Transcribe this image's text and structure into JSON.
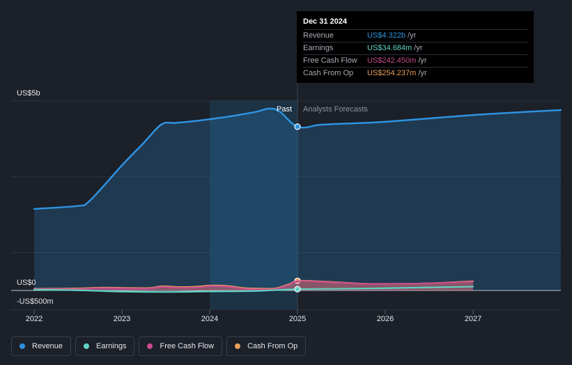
{
  "chart_data": {
    "type": "area",
    "x_ticks": [
      "2022",
      "2023",
      "2024",
      "2025",
      "2026",
      "2027"
    ],
    "y_axis_labels": [
      "US$5b",
      "US$0",
      "-US$500m"
    ],
    "ylim_millions": [
      -500,
      5000
    ],
    "divider_labels": {
      "past": "Past",
      "forecast": "Analysts Forecasts"
    },
    "divider_date": 2025.0,
    "highlight_range": [
      2024.0,
      2025.0
    ],
    "series": [
      {
        "name": "Revenue",
        "color": "#2e93e0",
        "filled": true,
        "x": [
          2022.0,
          2022.5,
          2022.6,
          2022.75,
          2023.0,
          2023.25,
          2023.45,
          2023.6,
          2023.75,
          2024.0,
          2024.25,
          2024.5,
          2024.75,
          2025.0,
          2025.25,
          2025.5,
          2025.75,
          2026.0,
          2026.5,
          2027.0,
          2027.5,
          2028.0
        ],
        "y": [
          2150,
          2230,
          2300,
          2650,
          3300,
          3900,
          4380,
          4420,
          4450,
          4520,
          4600,
          4700,
          4780,
          4322,
          4370,
          4400,
          4420,
          4450,
          4540,
          4630,
          4700,
          4760
        ]
      },
      {
        "name": "Earnings",
        "color": "#5ed4c4",
        "filled": false,
        "x": [
          2022.0,
          2022.5,
          2023.0,
          2023.5,
          2024.0,
          2024.5,
          2025.0,
          2025.5,
          2026.0,
          2026.5,
          2027.0
        ],
        "y": [
          20,
          5,
          -30,
          -40,
          -25,
          -15,
          34.684,
          45,
          60,
          80,
          100
        ]
      },
      {
        "name": "Free Cash Flow",
        "color": "#c84b8d",
        "filled": true,
        "x": [
          2022.0,
          2022.5,
          2022.75,
          2023.0,
          2023.3,
          2023.45,
          2023.6,
          2023.75,
          2023.9,
          2024.0,
          2024.2,
          2024.4,
          2024.6,
          2024.75,
          2024.9,
          2025.0,
          2025.25,
          2025.5,
          2025.75,
          2026.0,
          2026.5,
          2027.0
        ],
        "y": [
          35,
          40,
          60,
          55,
          50,
          90,
          75,
          70,
          85,
          110,
          100,
          40,
          30,
          40,
          140,
          242.45,
          230,
          200,
          175,
          175,
          190,
          230
        ]
      },
      {
        "name": "Cash From Op",
        "color": "#e8a05c",
        "filled": true,
        "x": [
          2022.0,
          2022.5,
          2022.75,
          2023.0,
          2023.3,
          2023.45,
          2023.6,
          2023.75,
          2023.9,
          2024.0,
          2024.2,
          2024.4,
          2024.6,
          2024.75,
          2024.9,
          2025.0,
          2025.25,
          2025.5,
          2025.75,
          2026.0,
          2026.5,
          2027.0
        ],
        "y": [
          45,
          55,
          75,
          70,
          65,
          110,
          95,
          90,
          110,
          130,
          120,
          60,
          50,
          55,
          160,
          254.237,
          240,
          210,
          180,
          175,
          190,
          245
        ]
      }
    ]
  },
  "tooltip": {
    "date": "Dec 31 2024",
    "rows": [
      {
        "label": "Revenue",
        "value": "US$4.322b",
        "unit": "/yr",
        "color": "#2e93e0"
      },
      {
        "label": "Earnings",
        "value": "US$34.684m",
        "unit": "/yr",
        "color": "#5ed4c4"
      },
      {
        "label": "Free Cash Flow",
        "value": "US$242.450m",
        "unit": "/yr",
        "color": "#c84b8d"
      },
      {
        "label": "Cash From Op",
        "value": "US$254.237m",
        "unit": "/yr",
        "color": "#e8a05c"
      }
    ]
  },
  "legend": [
    {
      "label": "Revenue",
      "color": "#2e93e0"
    },
    {
      "label": "Earnings",
      "color": "#5ed4c4"
    },
    {
      "label": "Free Cash Flow",
      "color": "#c84b8d"
    },
    {
      "label": "Cash From Op",
      "color": "#e8a05c"
    }
  ]
}
